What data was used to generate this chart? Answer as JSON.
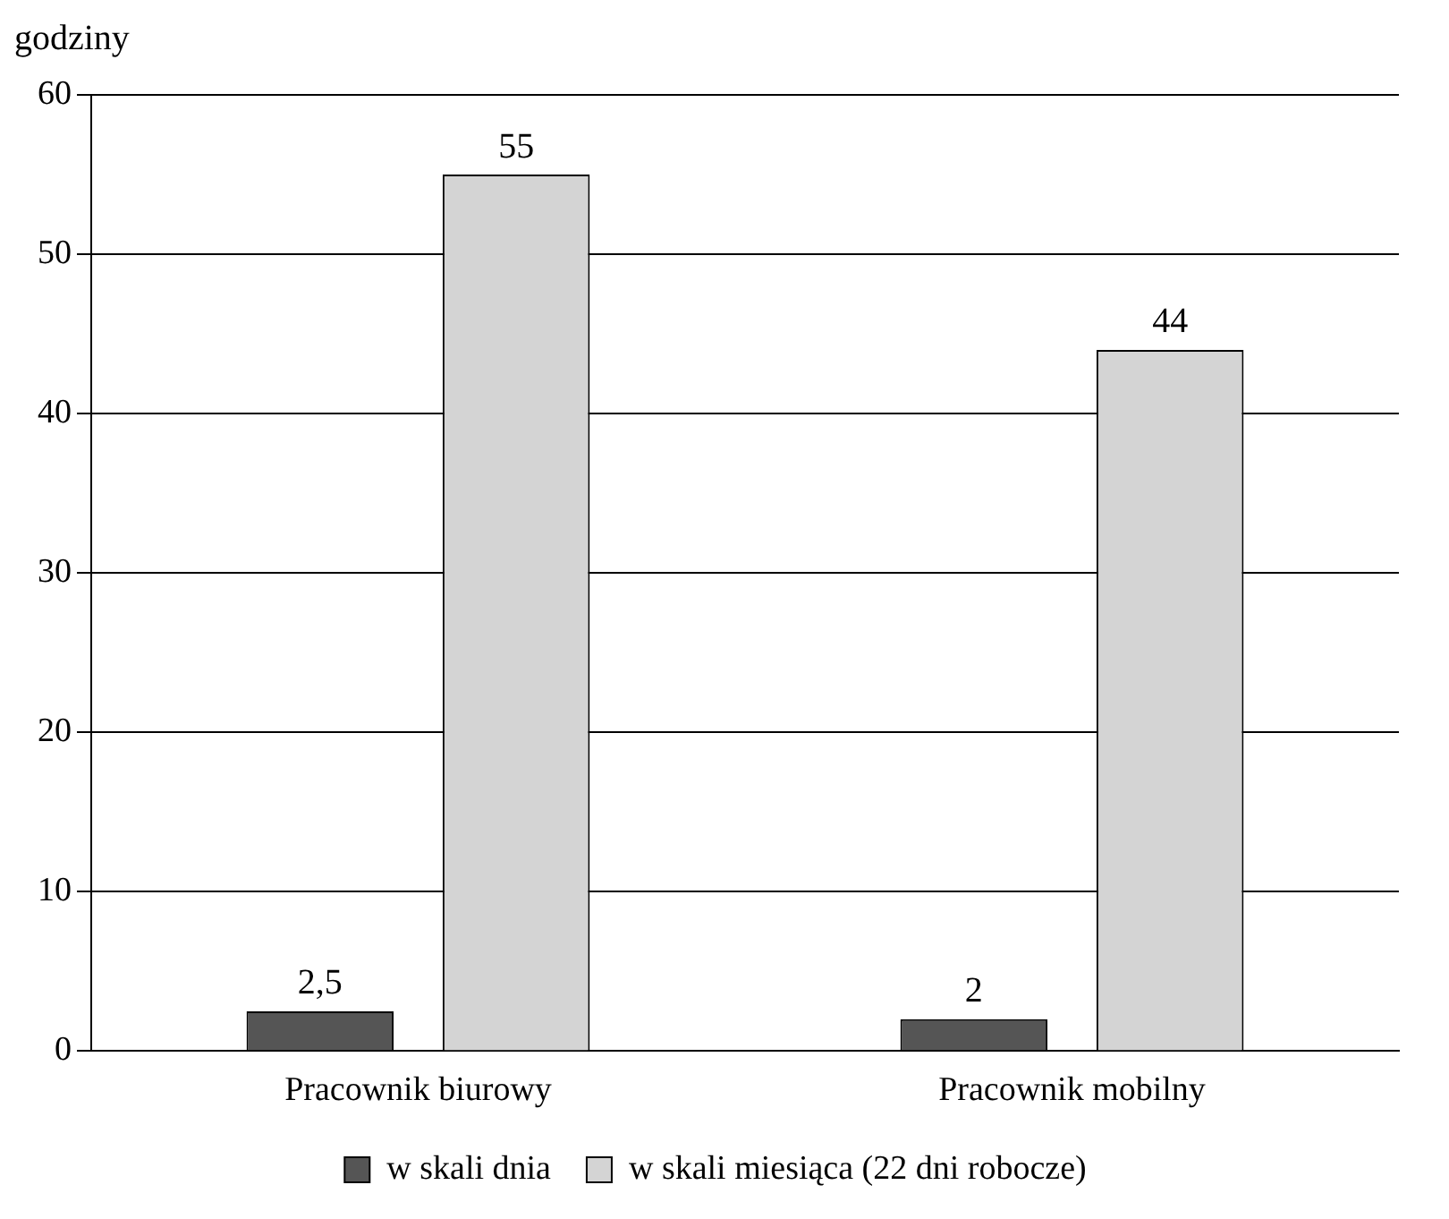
{
  "chart_data": {
    "type": "bar",
    "ylabel": "godziny",
    "categories": [
      "Pracownik biurowy",
      "Pracownik mobilny"
    ],
    "series": [
      {
        "name": "w skali dnia",
        "color": "#555555",
        "values": [
          2.5,
          2
        ],
        "value_labels": [
          "2,5",
          "2"
        ]
      },
      {
        "name": "w skali miesiąca (22 dni robocze)",
        "color": "#d4d4d4",
        "values": [
          55,
          44
        ],
        "value_labels": [
          "55",
          "44"
        ]
      }
    ],
    "ylim": [
      0,
      60
    ],
    "yticks": [
      0,
      10,
      20,
      30,
      40,
      50,
      60
    ],
    "grid": "y",
    "legend": "bottom"
  }
}
